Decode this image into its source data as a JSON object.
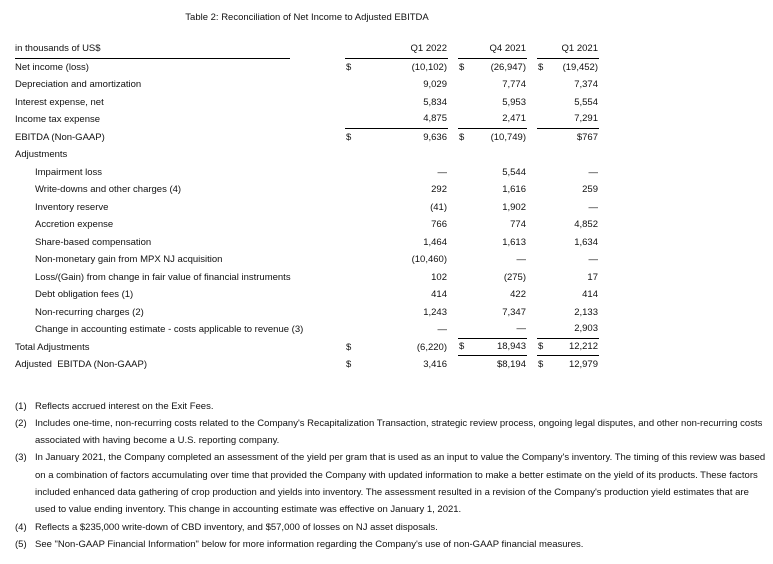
{
  "title": "Table 2: Reconciliation of Net Income to Adjusted EBITDA",
  "table": {
    "header": {
      "label": "in thousands of US$",
      "columns": [
        "Q1 2022",
        "Q4 2021",
        "Q1 2021"
      ]
    },
    "rows": [
      {
        "label": "Net income (loss)",
        "ind": 0,
        "c": [
          [
            "$",
            "(10,102)"
          ],
          [
            "$",
            "(26,947)"
          ],
          [
            "$",
            "(19,452)"
          ]
        ]
      },
      {
        "label": "Depreciation and amortization",
        "ind": 0,
        "c": [
          [
            "",
            "9,029"
          ],
          [
            "",
            "7,774"
          ],
          [
            "",
            "7,374"
          ]
        ]
      },
      {
        "label": "Interest expense, net",
        "ind": 0,
        "c": [
          [
            "",
            "5,834"
          ],
          [
            "",
            "5,953"
          ],
          [
            "",
            "5,554"
          ]
        ]
      },
      {
        "label": "Income tax expense",
        "ind": 0,
        "c": [
          [
            "",
            "4,875"
          ],
          [
            "",
            "2,471"
          ],
          [
            "",
            "7,291"
          ]
        ],
        "rb": [
          1,
          1,
          1
        ]
      },
      {
        "label": "EBITDA (Non-GAAP)",
        "ind": 0,
        "c": [
          [
            "$",
            "9,636"
          ],
          [
            "$",
            "(10,749)"
          ],
          [
            "",
            "$767"
          ]
        ]
      },
      {
        "label": "Adjustments",
        "ind": 0,
        "c": [
          null,
          null,
          null
        ]
      },
      {
        "label": "Impairment loss",
        "ind": 1,
        "c": [
          [
            "",
            "—"
          ],
          [
            "",
            "5,544"
          ],
          [
            "",
            "—"
          ]
        ]
      },
      {
        "label": "Write-downs and other charges (4)",
        "ind": 1,
        "c": [
          [
            "",
            "292"
          ],
          [
            "",
            "1,616"
          ],
          [
            "",
            "259"
          ]
        ]
      },
      {
        "label": "Inventory reserve",
        "ind": 1,
        "c": [
          [
            "",
            "(41)"
          ],
          [
            "",
            "1,902"
          ],
          [
            "",
            "—"
          ]
        ]
      },
      {
        "label": "Accretion expense",
        "ind": 1,
        "c": [
          [
            "",
            "766"
          ],
          [
            "",
            "774"
          ],
          [
            "",
            "4,852"
          ]
        ]
      },
      {
        "label": "Share-based compensation",
        "ind": 1,
        "c": [
          [
            "",
            "1,464"
          ],
          [
            "",
            "1,613"
          ],
          [
            "",
            "1,634"
          ]
        ]
      },
      {
        "label": "Non-monetary gain from MPX NJ acquisition",
        "ind": 1,
        "c": [
          [
            "",
            "(10,460)"
          ],
          [
            "",
            "—"
          ],
          [
            "",
            "—"
          ]
        ]
      },
      {
        "label": "Loss/(Gain) from change in fair value of financial instruments",
        "ind": 1,
        "c": [
          [
            "",
            "102"
          ],
          [
            "",
            "(275)"
          ],
          [
            "",
            "17"
          ]
        ]
      },
      {
        "label": "Debt obligation fees (1)",
        "ind": 1,
        "c": [
          [
            "",
            "414"
          ],
          [
            "",
            "422"
          ],
          [
            "",
            "414"
          ]
        ]
      },
      {
        "label": "Non-recurring charges (2)",
        "ind": 1,
        "c": [
          [
            "",
            "1,243"
          ],
          [
            "",
            "7,347"
          ],
          [
            "",
            "2,133"
          ]
        ]
      },
      {
        "label": "Change in accounting estimate - costs applicable to revenue (3)",
        "ind": 1,
        "c": [
          [
            "",
            "—"
          ],
          [
            "",
            "—"
          ],
          [
            "",
            "2,903"
          ]
        ],
        "rb": [
          0,
          1,
          1
        ]
      },
      {
        "label": "Total Adjustments",
        "ind": 0,
        "c": [
          [
            "$",
            "(6,220)"
          ],
          [
            "$",
            "18,943"
          ],
          [
            "$",
            "12,212"
          ]
        ],
        "rb": [
          0,
          1,
          1
        ]
      },
      {
        "label": "Adjusted  EBITDA (Non-GAAP)",
        "ind": 0,
        "c": [
          [
            "$",
            "3,416"
          ],
          [
            "",
            "$8,194"
          ],
          [
            "$",
            "12,979"
          ]
        ]
      }
    ]
  },
  "footnotes": [
    {
      "n": "(1)",
      "text": "Reflects accrued interest on the Exit Fees."
    },
    {
      "n": "(2)",
      "text": "Includes one-time, non-recurring costs related to the Company's Recapitalization Transaction, strategic review process, ongoing legal disputes, and other non-recurring costs associated with having become a U.S. reporting company."
    },
    {
      "n": "(3)",
      "text": "In January 2021, the Company completed an assessment of the yield per gram that is used as an input to value the Company's inventory. The timing of this review was based on a combination of factors accumulating over time that provided the Company with updated information to make a better estimate on the yield of its products. These factors included enhanced data gathering of crop production and yields into inventory. The assessment resulted in a revision of the Company's production yield estimates that are used to value ending inventory. This change in accounting estimate was effective on January 1, 2021."
    },
    {
      "n": "(4)",
      "text": "Reflects a $235,000 write-down of CBD inventory, and $57,000 of losses on NJ asset disposals."
    },
    {
      "n": "(5)",
      "text": "See \"Non-GAAP Financial Information\" below for more information regarding the Company's use of non-GAAP financial measures."
    }
  ],
  "colors": {
    "text": "#111111",
    "rule": "#000000",
    "background": "#ffffff"
  }
}
